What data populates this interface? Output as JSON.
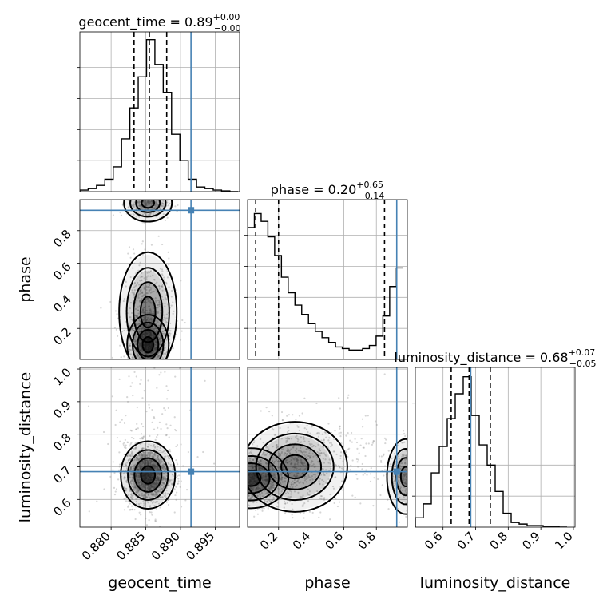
{
  "colors": {
    "truth": "#4682b4",
    "hist": "#000000",
    "grid": "#b0b0b0",
    "density": "#000000"
  },
  "chart_data": {
    "type": "corner",
    "parameters": [
      "geocent_time",
      "phase",
      "luminosity_distance"
    ],
    "truths": {
      "geocent_time": 0.8915,
      "phase": 0.925,
      "luminosity_distance": 0.685
    },
    "ranges": {
      "geocent_time": [
        0.8755,
        0.8985
      ],
      "phase": [
        0.01,
        0.99
      ],
      "luminosity_distance": [
        0.515,
        1.005
      ]
    },
    "ticks": {
      "geocent_time": [
        "0.880",
        "0.885",
        "0.890",
        "0.895"
      ],
      "phase": [
        "0.2",
        "0.4",
        "0.6",
        "0.8"
      ],
      "luminosity_distance": [
        "0.6",
        "0.7",
        "0.8",
        "0.9",
        "1.0"
      ]
    },
    "tick_values": {
      "geocent_time": [
        0.88,
        0.885,
        0.89,
        0.895
      ],
      "phase": [
        0.2,
        0.4,
        0.6,
        0.8
      ],
      "luminosity_distance": [
        0.6,
        0.7,
        0.8,
        0.9,
        1.0
      ]
    },
    "phase_left_ticks": [
      "0.2",
      "0.4",
      "0.6",
      "0.8"
    ],
    "phase_left_tick_values": [
      0.2,
      0.4,
      0.6,
      0.8
    ],
    "ld_left_ticks": [
      "0.6",
      "0.7",
      "0.8",
      "0.9",
      "1.0"
    ],
    "ld_left_tick_values": [
      0.6,
      0.7,
      0.8,
      0.9,
      1.0
    ],
    "titles": {
      "geocent_time": {
        "label": "geocent_time = 0.89",
        "plus": "+0.00",
        "minus": "−0.00"
      },
      "phase": {
        "label": "phase = 0.20",
        "plus": "+0.65",
        "minus": "−0.14"
      },
      "luminosity_distance": {
        "label": "luminosity_distance = 0.68",
        "plus": "+0.07",
        "minus": "−0.05"
      }
    },
    "quantiles": {
      "geocent_time": [
        0.8833,
        0.8855,
        0.888
      ],
      "phase": [
        0.06,
        0.2,
        0.85
      ],
      "luminosity_distance": [
        0.625,
        0.68,
        0.745
      ]
    },
    "histograms": {
      "geocent_time": {
        "edges": [
          0.8755,
          0.8767,
          0.8779,
          0.8791,
          0.8803,
          0.8815,
          0.8827,
          0.8839,
          0.8851,
          0.8863,
          0.8875,
          0.8887,
          0.8899,
          0.8911,
          0.8923,
          0.8935,
          0.8947,
          0.8959,
          0.8971,
          0.8983
        ],
        "counts": [
          0.01,
          0.02,
          0.04,
          0.08,
          0.16,
          0.34,
          0.54,
          0.74,
          0.98,
          0.82,
          0.64,
          0.37,
          0.2,
          0.08,
          0.03,
          0.02,
          0.01,
          0.005,
          0
        ]
      },
      "phase": {
        "edges": [
          0.01,
          0.0515,
          0.093,
          0.1345,
          0.176,
          0.2175,
          0.259,
          0.3005,
          0.342,
          0.3835,
          0.425,
          0.4665,
          0.508,
          0.5495,
          0.591,
          0.6325,
          0.674,
          0.7155,
          0.757,
          0.7985,
          0.84,
          0.8815,
          0.923,
          0.9645
        ],
        "counts": [
          0.85,
          0.94,
          0.89,
          0.79,
          0.67,
          0.53,
          0.43,
          0.35,
          0.29,
          0.23,
          0.18,
          0.14,
          0.11,
          0.08,
          0.07,
          0.06,
          0.06,
          0.07,
          0.09,
          0.15,
          0.28,
          0.47,
          0.59
        ]
      },
      "luminosity_distance": {
        "edges": [
          0.515,
          0.5395,
          0.564,
          0.5885,
          0.613,
          0.6375,
          0.662,
          0.6865,
          0.711,
          0.7355,
          0.76,
          0.7845,
          0.809,
          0.8335,
          0.858,
          0.8825,
          0.907,
          0.9315,
          0.956,
          0.9805
        ],
        "counts": [
          0.06,
          0.15,
          0.35,
          0.52,
          0.7,
          0.86,
          0.97,
          0.72,
          0.53,
          0.4,
          0.23,
          0.09,
          0.03,
          0.02,
          0.01,
          0.01,
          0.005,
          0.005,
          0.0
        ]
      }
    },
    "grid": true
  }
}
